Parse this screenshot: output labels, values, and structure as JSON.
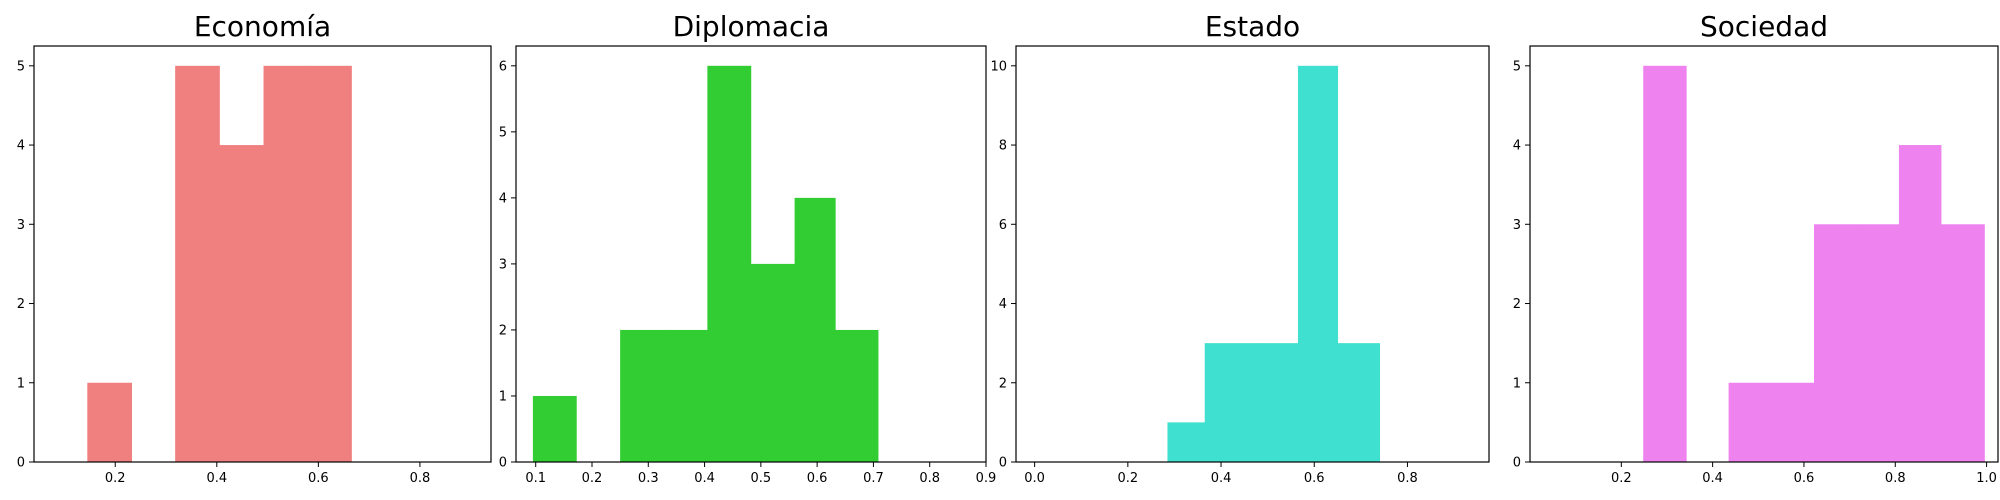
{
  "chart_data": [
    {
      "type": "bar",
      "title": "Economía",
      "color": "#f08080",
      "xlim": [
        0.04,
        0.94
      ],
      "ylim": [
        0,
        5.25
      ],
      "xticks": [
        0.2,
        0.4,
        0.6,
        0.8
      ],
      "xtick_labels": [
        "0.2",
        "0.4",
        "0.6",
        "0.8"
      ],
      "yticks": [
        0,
        1,
        2,
        3,
        4,
        5
      ],
      "ytick_labels": [
        "0",
        "1",
        "2",
        "3",
        "4",
        "5"
      ],
      "bins": [
        {
          "x0": 0.145,
          "x1": 0.232,
          "value": 1
        },
        {
          "x0": 0.232,
          "x1": 0.318,
          "value": 0
        },
        {
          "x0": 0.318,
          "x1": 0.405,
          "value": 5
        },
        {
          "x0": 0.405,
          "x1": 0.492,
          "value": 4
        },
        {
          "x0": 0.492,
          "x1": 0.578,
          "value": 5
        },
        {
          "x0": 0.578,
          "x1": 0.665,
          "value": 5
        }
      ]
    },
    {
      "type": "bar",
      "title": "Diplomacia",
      "color": "#32cd32",
      "xlim": [
        0.065,
        0.9
      ],
      "ylim": [
        0,
        6.3
      ],
      "xticks": [
        0.1,
        0.2,
        0.3,
        0.4,
        0.5,
        0.6,
        0.7,
        0.8,
        0.9
      ],
      "xtick_labels": [
        "0.1",
        "0.2",
        "0.3",
        "0.4",
        "0.5",
        "0.6",
        "0.7",
        "0.8",
        "0.9"
      ],
      "yticks": [
        0,
        1,
        2,
        3,
        4,
        5,
        6
      ],
      "ytick_labels": [
        "0",
        "1",
        "2",
        "3",
        "4",
        "5",
        "6"
      ],
      "bins": [
        {
          "x0": 0.095,
          "x1": 0.172,
          "value": 1
        },
        {
          "x0": 0.172,
          "x1": 0.25,
          "value": 0
        },
        {
          "x0": 0.25,
          "x1": 0.328,
          "value": 2
        },
        {
          "x0": 0.328,
          "x1": 0.405,
          "value": 2
        },
        {
          "x0": 0.405,
          "x1": 0.482,
          "value": 6
        },
        {
          "x0": 0.482,
          "x1": 0.56,
          "value": 3
        },
        {
          "x0": 0.56,
          "x1": 0.632,
          "value": 4
        },
        {
          "x0": 0.632,
          "x1": 0.708,
          "value": 2
        }
      ]
    },
    {
      "type": "bar",
      "title": "Estado",
      "color": "#40e0d0",
      "xlim": [
        -0.04,
        0.975
      ],
      "ylim": [
        0,
        10.5
      ],
      "xticks": [
        0.0,
        0.2,
        0.4,
        0.6,
        0.8
      ],
      "xtick_labels": [
        "0.0",
        "0.2",
        "0.4",
        "0.6",
        "0.8"
      ],
      "yticks": [
        0,
        2,
        4,
        6,
        8,
        10
      ],
      "ytick_labels": [
        "0",
        "2",
        "4",
        "6",
        "8",
        "10"
      ],
      "bins": [
        {
          "x0": 0.285,
          "x1": 0.365,
          "value": 1
        },
        {
          "x0": 0.365,
          "x1": 0.475,
          "value": 3
        },
        {
          "x0": 0.475,
          "x1": 0.565,
          "value": 3
        },
        {
          "x0": 0.565,
          "x1": 0.65,
          "value": 10
        },
        {
          "x0": 0.65,
          "x1": 0.74,
          "value": 3
        }
      ]
    },
    {
      "type": "bar",
      "title": "Sociedad",
      "color": "#ee82ee",
      "xlim": [
        0.0,
        1.025
      ],
      "ylim": [
        0,
        5.25
      ],
      "xticks": [
        0.2,
        0.4,
        0.6,
        0.8,
        1.0
      ],
      "xtick_labels": [
        "0.2",
        "0.4",
        "0.6",
        "0.8",
        "1.0"
      ],
      "yticks": [
        0,
        1,
        2,
        3,
        4,
        5
      ],
      "ytick_labels": [
        "0",
        "1",
        "2",
        "3",
        "4",
        "5"
      ],
      "bins": [
        {
          "x0": 0.248,
          "x1": 0.342,
          "value": 5
        },
        {
          "x0": 0.342,
          "x1": 0.435,
          "value": 0
        },
        {
          "x0": 0.435,
          "x1": 0.528,
          "value": 1
        },
        {
          "x0": 0.528,
          "x1": 0.622,
          "value": 1
        },
        {
          "x0": 0.622,
          "x1": 0.715,
          "value": 3
        },
        {
          "x0": 0.715,
          "x1": 0.808,
          "value": 3
        },
        {
          "x0": 0.808,
          "x1": 0.9,
          "value": 4
        },
        {
          "x0": 0.9,
          "x1": 0.995,
          "value": 3
        }
      ]
    }
  ]
}
